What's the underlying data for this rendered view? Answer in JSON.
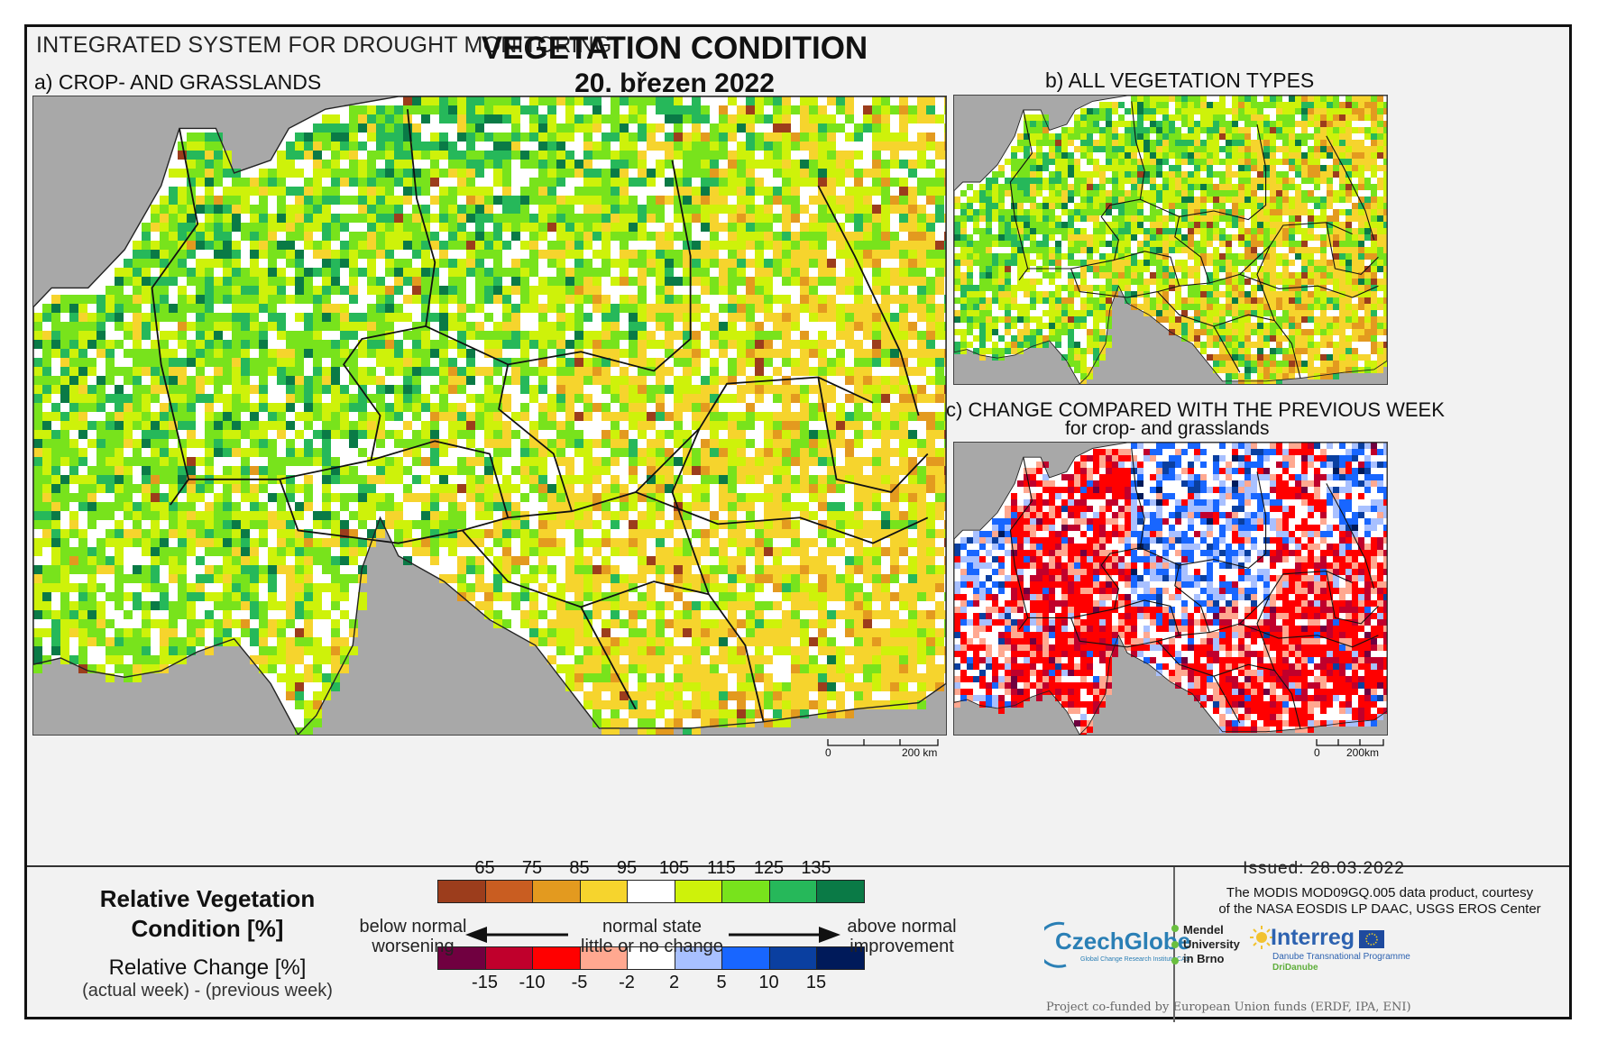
{
  "header": {
    "system_title": "INTEGRATED SYSTEM FOR DROUGHT MONITORING",
    "title": "VEGETATION CONDITION",
    "date": "20. březen 2022"
  },
  "panels": {
    "a": {
      "label": "a) CROP- AND GRASSLANDS",
      "scale": {
        "zero": "0",
        "end": "200 km"
      }
    },
    "b": {
      "label": "b) ALL VEGETATION TYPES"
    },
    "c": {
      "label": "c) CHANGE COMPARED WITH THE PREVIOUS WEEK",
      "sublabel": "for crop- and grasslands",
      "scale": {
        "zero": "0",
        "end": "200km"
      }
    }
  },
  "legend": {
    "rvc_title_line1": "Relative Vegetation",
    "rvc_title_line2": "Condition [%]",
    "rc_title": "Relative Change [%]",
    "rc_subtitle": "(actual week) - (previous week)",
    "rvc_ticks": [
      "65",
      "75",
      "85",
      "95",
      "105",
      "115",
      "125",
      "135"
    ],
    "rvc_colors": [
      "#9c3d1c",
      "#c95d21",
      "#e39a1f",
      "#f6d42d",
      "#ffffff",
      "#cef20a",
      "#78e31c",
      "#26b85a",
      "#0a7a46"
    ],
    "rc_ticks": [
      "-15",
      "-10",
      "-5",
      "-2",
      "2",
      "5",
      "10",
      "15"
    ],
    "rc_colors": [
      "#700040",
      "#c0002c",
      "#ff0000",
      "#ffa890",
      "#ffffff",
      "#a8c0ff",
      "#1866ff",
      "#0a3fa0",
      "#001a5a"
    ],
    "left_note_line1": "below normal",
    "left_note_line2": "worsening",
    "center_note_line1": "normal state",
    "center_note_line2": "little or no change",
    "right_note_line1": "above normal",
    "right_note_line2": "improvement"
  },
  "info": {
    "issued": "Issued: 28.03.2022",
    "credit_line1": "The MODIS MOD09GQ.005 data product, courtesy",
    "credit_line2": "of the NASA EOSDIS LP DAAC, USGS EROS Center",
    "logo_czechglobe": "CzechGlobe",
    "logo_czechglobe_sub": "Global Change Research Institute CAS",
    "logo_mendel_1": "Mendel",
    "logo_mendel_2": "University",
    "logo_mendel_3": "in Brno",
    "logo_interreg": "Interreg",
    "logo_interreg_sub": "Danube Transnational Programme",
    "logo_dridanube": "DriDanube",
    "cofunded": "Project co-funded by European Union funds (ERDF, IPA, ENI)"
  },
  "colors": {
    "sea": "#a8a8a8",
    "border": "#111111"
  }
}
